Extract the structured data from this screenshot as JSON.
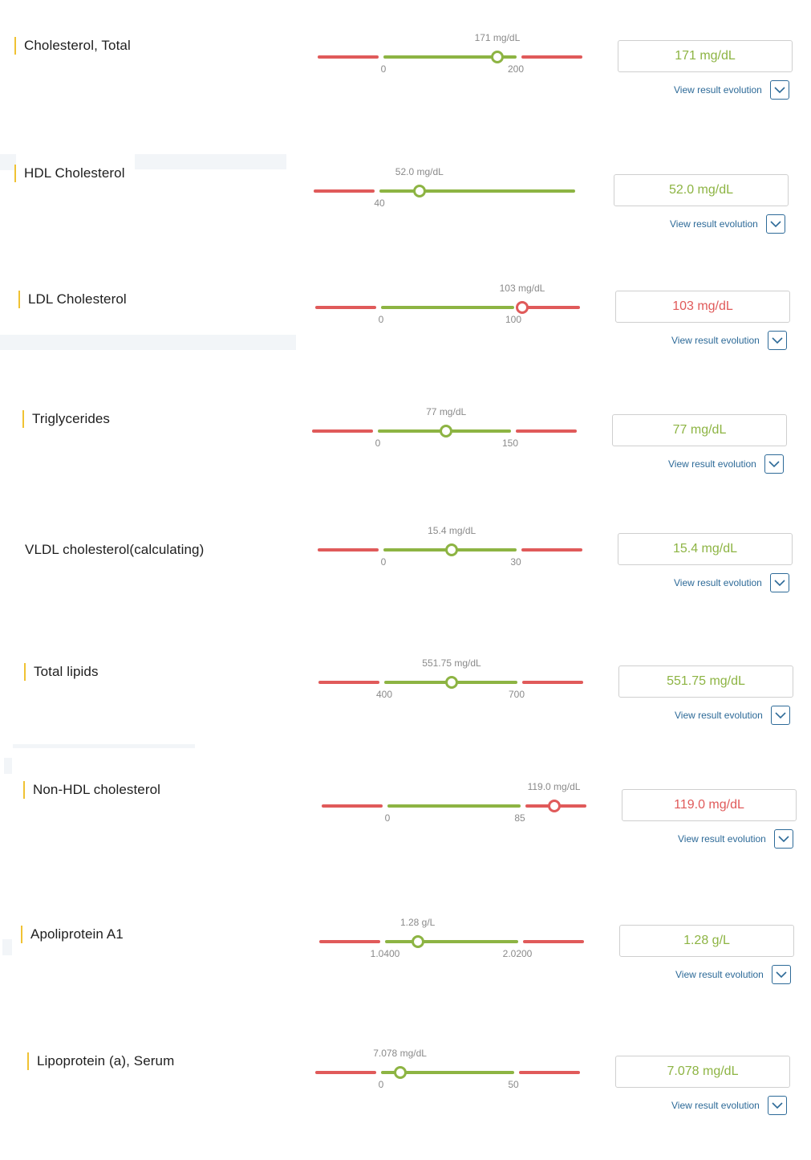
{
  "view_evolution_label": "View result evolution",
  "rows": [
    {
      "name": "Cholesterol, Total",
      "value": "171 mg/dL",
      "low": "0",
      "high": "200",
      "status": "normal",
      "marker_fraction": 0.855
    },
    {
      "name": "HDL Cholesterol",
      "value": "52.0 mg/dL",
      "low": "40",
      "high": "",
      "status": "normal",
      "marker_fraction": 0.3
    },
    {
      "name": "LDL Cholesterol",
      "value": "103 mg/dL",
      "low": "0",
      "high": "100",
      "status": "high",
      "marker_fraction": 1.06
    },
    {
      "name": "Triglycerides",
      "value": "77 mg/dL",
      "low": "0",
      "high": "150",
      "status": "normal",
      "marker_fraction": 0.513
    },
    {
      "name": "VLDL cholesterol(calculating)",
      "value": "15.4 mg/dL",
      "low": "0",
      "high": "30",
      "status": "normal",
      "marker_fraction": 0.513
    },
    {
      "name": "Total lipids",
      "value": "551.75 mg/dL",
      "low": "400",
      "high": "700",
      "status": "normal",
      "marker_fraction": 0.506
    },
    {
      "name": "Non-HDL cholesterol",
      "value": "119.0 mg/dL",
      "low": "0",
      "high": "85",
      "status": "high",
      "marker_fraction": 1.25
    },
    {
      "name": "Apoliprotein A1",
      "value": "1.28 g/L",
      "low": "1.0400",
      "high": "2.0200",
      "status": "normal",
      "marker_fraction": 0.245
    },
    {
      "name": "Lipoprotein (a), Serum",
      "value": "7.078 mg/dL",
      "low": "0",
      "high": "50",
      "status": "normal",
      "marker_fraction": 0.142
    }
  ]
}
